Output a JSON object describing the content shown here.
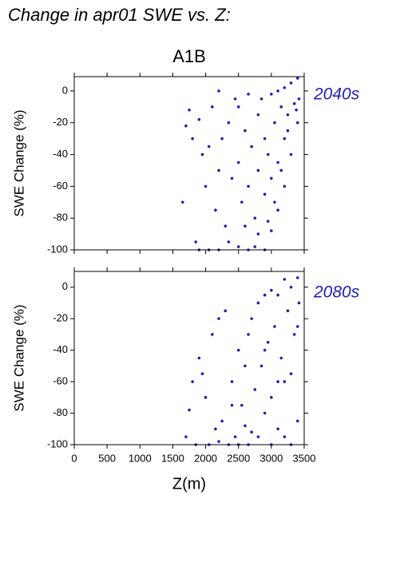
{
  "chart_data": [
    {
      "type": "scatter",
      "title": "Change in apr01 SWE vs. Z:",
      "subtitle": "A1B",
      "label": "2040s",
      "ylabel": "SWE Change (%)",
      "color": "#1f1fb4",
      "xlim": [
        0,
        3500
      ],
      "ylim": [
        -100,
        9
      ],
      "yticks": [
        0,
        -20,
        -40,
        -60,
        -80,
        -100
      ],
      "x": [
        1700,
        1750,
        1800,
        1850,
        1900,
        1950,
        2000,
        2050,
        2100,
        2150,
        2200,
        2200,
        2200,
        2250,
        2300,
        2350,
        2400,
        2450,
        2500,
        2500,
        2500,
        2550,
        2600,
        2650,
        2650,
        2650,
        2700,
        2750,
        2800,
        2800,
        2800,
        2850,
        2900,
        2900,
        2900,
        2950,
        3000,
        3000,
        3000,
        3050,
        3100,
        3100,
        3100,
        3150,
        3200,
        3200,
        3200,
        3250,
        3300,
        3300,
        3350,
        3400,
        3400,
        3420,
        1650,
        1900,
        2050,
        2350,
        2600,
        2750,
        2950,
        3050,
        3150,
        3250,
        3380
      ],
      "values": [
        -22,
        -12,
        -30,
        -95,
        -18,
        -40,
        -60,
        -100,
        -10,
        -75,
        0,
        -50,
        -100,
        -30,
        -85,
        -20,
        -55,
        -5,
        -10,
        -45,
        -98,
        -70,
        -25,
        -2,
        -60,
        -100,
        -35,
        -80,
        -15,
        -50,
        -90,
        -5,
        -30,
        -65,
        -100,
        -40,
        -2,
        -55,
        -88,
        -20,
        0,
        -45,
        -75,
        -10,
        2,
        -30,
        -60,
        -15,
        5,
        -40,
        -8,
        8,
        -20,
        -5,
        -70,
        -100,
        -35,
        -95,
        -85,
        -98,
        -82,
        -70,
        -50,
        -25,
        -12
      ]
    },
    {
      "type": "scatter",
      "label": "2080s",
      "ylabel": "SWE Change (%)",
      "xlabel": "Z(m)",
      "color": "#1f1fb4",
      "xlim": [
        0,
        3500
      ],
      "ylim": [
        -100,
        10
      ],
      "xticks": [
        0,
        500,
        1000,
        1500,
        2000,
        2500,
        3000,
        3500
      ],
      "yticks": [
        0,
        -20,
        -40,
        -60,
        -80,
        -100
      ],
      "x": [
        1700,
        1750,
        1800,
        1850,
        1900,
        1950,
        2000,
        2050,
        2100,
        2150,
        2200,
        2250,
        2300,
        2350,
        2400,
        2450,
        2500,
        2500,
        2550,
        2600,
        2650,
        2650,
        2700,
        2750,
        2800,
        2800,
        2850,
        2900,
        2900,
        2950,
        3000,
        3000,
        3050,
        3100,
        3100,
        3150,
        3200,
        3200,
        3250,
        3300,
        3300,
        3350,
        3400,
        3400,
        3420,
        2200,
        2400,
        2600,
        2700,
        2900,
        3000,
        3100,
        3200,
        3300,
        3400
      ],
      "values": [
        -95,
        -78,
        -60,
        -100,
        -45,
        -55,
        -70,
        -100,
        -30,
        -90,
        -20,
        -85,
        -15,
        -100,
        -60,
        -95,
        -40,
        -100,
        -75,
        -88,
        -30,
        -100,
        -20,
        -65,
        -10,
        -95,
        -50,
        -5,
        -80,
        -35,
        -2,
        -70,
        -25,
        -5,
        -90,
        -45,
        5,
        -60,
        -15,
        0,
        -100,
        -30,
        6,
        -85,
        -10,
        -98,
        -75,
        -50,
        -92,
        -40,
        -100,
        -60,
        -95,
        -55,
        -25
      ]
    }
  ]
}
